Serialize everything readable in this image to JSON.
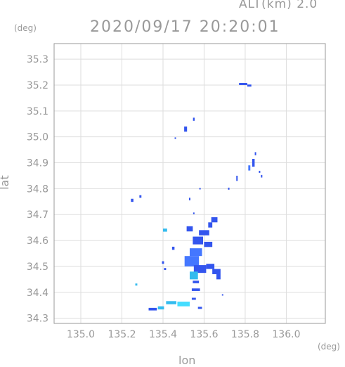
{
  "header": {
    "altitude_label": "ALT(km) 2.0",
    "timestamp": "2020/09/17 20:20:01"
  },
  "axes": {
    "y_unit": "(deg)",
    "x_unit": "(deg)",
    "y_label": "lat",
    "x_label": "lon",
    "x_ticks": [
      "135.0",
      "135.2",
      "135.4",
      "135.6",
      "135.8",
      "136.0"
    ],
    "y_ticks": [
      "35.3",
      "35.2",
      "35.1",
      "35.0",
      "34.9",
      "34.8",
      "34.7",
      "34.6",
      "34.5",
      "34.4",
      "34.3"
    ],
    "x_range": [
      134.87,
      136.19
    ],
    "y_range": [
      34.28,
      35.36
    ],
    "grid": true
  },
  "colors": {
    "frame": "#999999",
    "grid": "#dddddd",
    "echo_strong": "#3355ee",
    "echo_medium": "#4477ff",
    "echo_light": "#33bbee",
    "echo_cyan": "#44ddff"
  },
  "chart_data": {
    "type": "scatter",
    "title": "2020/09/17 20:20:01",
    "xlabel": "lon",
    "ylabel": "lat",
    "xlim": [
      134.87,
      136.19
    ],
    "ylim": [
      34.28,
      35.36
    ],
    "series": [
      {
        "values": [
          {
            "x": 135.79,
            "y": 35.204,
            "w": 0.04,
            "h": 0.008,
            "c": "echo_strong"
          },
          {
            "x": 135.82,
            "y": 35.198,
            "w": 0.02,
            "h": 0.008,
            "c": "echo_strong"
          },
          {
            "x": 135.55,
            "y": 35.068,
            "w": 0.008,
            "h": 0.012,
            "c": "echo_strong"
          },
          {
            "x": 135.51,
            "y": 35.03,
            "w": 0.014,
            "h": 0.02,
            "c": "echo_strong"
          },
          {
            "x": 135.46,
            "y": 34.995,
            "w": 0.006,
            "h": 0.006,
            "c": "echo_strong"
          },
          {
            "x": 135.85,
            "y": 34.935,
            "w": 0.005,
            "h": 0.012,
            "c": "echo_strong"
          },
          {
            "x": 135.84,
            "y": 34.9,
            "w": 0.012,
            "h": 0.03,
            "c": "echo_strong"
          },
          {
            "x": 135.82,
            "y": 34.88,
            "w": 0.01,
            "h": 0.02,
            "c": "echo_medium"
          },
          {
            "x": 135.87,
            "y": 34.865,
            "w": 0.006,
            "h": 0.008,
            "c": "echo_strong"
          },
          {
            "x": 135.88,
            "y": 34.848,
            "w": 0.006,
            "h": 0.01,
            "c": "echo_strong"
          },
          {
            "x": 135.76,
            "y": 34.84,
            "w": 0.006,
            "h": 0.02,
            "c": "echo_strong"
          },
          {
            "x": 135.72,
            "y": 34.8,
            "w": 0.004,
            "h": 0.008,
            "c": "echo_strong"
          },
          {
            "x": 135.58,
            "y": 34.8,
            "w": 0.004,
            "h": 0.006,
            "c": "echo_strong"
          },
          {
            "x": 135.29,
            "y": 34.77,
            "w": 0.01,
            "h": 0.01,
            "c": "echo_strong"
          },
          {
            "x": 135.25,
            "y": 34.755,
            "w": 0.012,
            "h": 0.012,
            "c": "echo_strong"
          },
          {
            "x": 135.53,
            "y": 34.76,
            "w": 0.004,
            "h": 0.01,
            "c": "echo_strong"
          },
          {
            "x": 135.55,
            "y": 34.705,
            "w": 0.006,
            "h": 0.006,
            "c": "echo_strong"
          },
          {
            "x": 135.65,
            "y": 34.68,
            "w": 0.03,
            "h": 0.02,
            "c": "echo_strong"
          },
          {
            "x": 135.63,
            "y": 34.66,
            "w": 0.02,
            "h": 0.02,
            "c": "echo_strong"
          },
          {
            "x": 135.53,
            "y": 34.645,
            "w": 0.03,
            "h": 0.02,
            "c": "echo_strong"
          },
          {
            "x": 135.41,
            "y": 34.64,
            "w": 0.02,
            "h": 0.012,
            "c": "echo_light"
          },
          {
            "x": 135.6,
            "y": 34.63,
            "w": 0.05,
            "h": 0.02,
            "c": "echo_strong"
          },
          {
            "x": 135.57,
            "y": 34.6,
            "w": 0.05,
            "h": 0.03,
            "c": "echo_strong"
          },
          {
            "x": 135.62,
            "y": 34.585,
            "w": 0.04,
            "h": 0.02,
            "c": "echo_strong"
          },
          {
            "x": 135.56,
            "y": 34.555,
            "w": 0.06,
            "h": 0.03,
            "c": "echo_medium"
          },
          {
            "x": 135.54,
            "y": 34.52,
            "w": 0.07,
            "h": 0.04,
            "c": "echo_medium"
          },
          {
            "x": 135.58,
            "y": 34.49,
            "w": 0.06,
            "h": 0.03,
            "c": "echo_strong"
          },
          {
            "x": 135.55,
            "y": 34.465,
            "w": 0.04,
            "h": 0.03,
            "c": "echo_light"
          },
          {
            "x": 135.63,
            "y": 34.5,
            "w": 0.04,
            "h": 0.02,
            "c": "echo_strong"
          },
          {
            "x": 135.66,
            "y": 34.48,
            "w": 0.04,
            "h": 0.02,
            "c": "echo_strong"
          },
          {
            "x": 135.67,
            "y": 34.46,
            "w": 0.02,
            "h": 0.02,
            "c": "echo_strong"
          },
          {
            "x": 135.45,
            "y": 34.57,
            "w": 0.012,
            "h": 0.012,
            "c": "echo_strong"
          },
          {
            "x": 135.4,
            "y": 34.515,
            "w": 0.01,
            "h": 0.01,
            "c": "echo_strong"
          },
          {
            "x": 135.41,
            "y": 34.49,
            "w": 0.01,
            "h": 0.008,
            "c": "echo_strong"
          },
          {
            "x": 135.56,
            "y": 34.44,
            "w": 0.03,
            "h": 0.01,
            "c": "echo_strong"
          },
          {
            "x": 135.56,
            "y": 34.41,
            "w": 0.04,
            "h": 0.01,
            "c": "echo_strong"
          },
          {
            "x": 135.69,
            "y": 34.39,
            "w": 0.006,
            "h": 0.004,
            "c": "echo_strong"
          },
          {
            "x": 135.55,
            "y": 34.375,
            "w": 0.02,
            "h": 0.008,
            "c": "echo_strong"
          },
          {
            "x": 135.44,
            "y": 34.36,
            "w": 0.05,
            "h": 0.012,
            "c": "echo_light"
          },
          {
            "x": 135.5,
            "y": 34.355,
            "w": 0.06,
            "h": 0.018,
            "c": "echo_cyan"
          },
          {
            "x": 135.58,
            "y": 34.34,
            "w": 0.02,
            "h": 0.008,
            "c": "echo_strong"
          },
          {
            "x": 135.35,
            "y": 34.335,
            "w": 0.04,
            "h": 0.01,
            "c": "echo_strong"
          },
          {
            "x": 135.39,
            "y": 34.34,
            "w": 0.03,
            "h": 0.012,
            "c": "echo_light"
          },
          {
            "x": 135.27,
            "y": 34.43,
            "w": 0.01,
            "h": 0.008,
            "c": "echo_light"
          }
        ]
      }
    ]
  }
}
